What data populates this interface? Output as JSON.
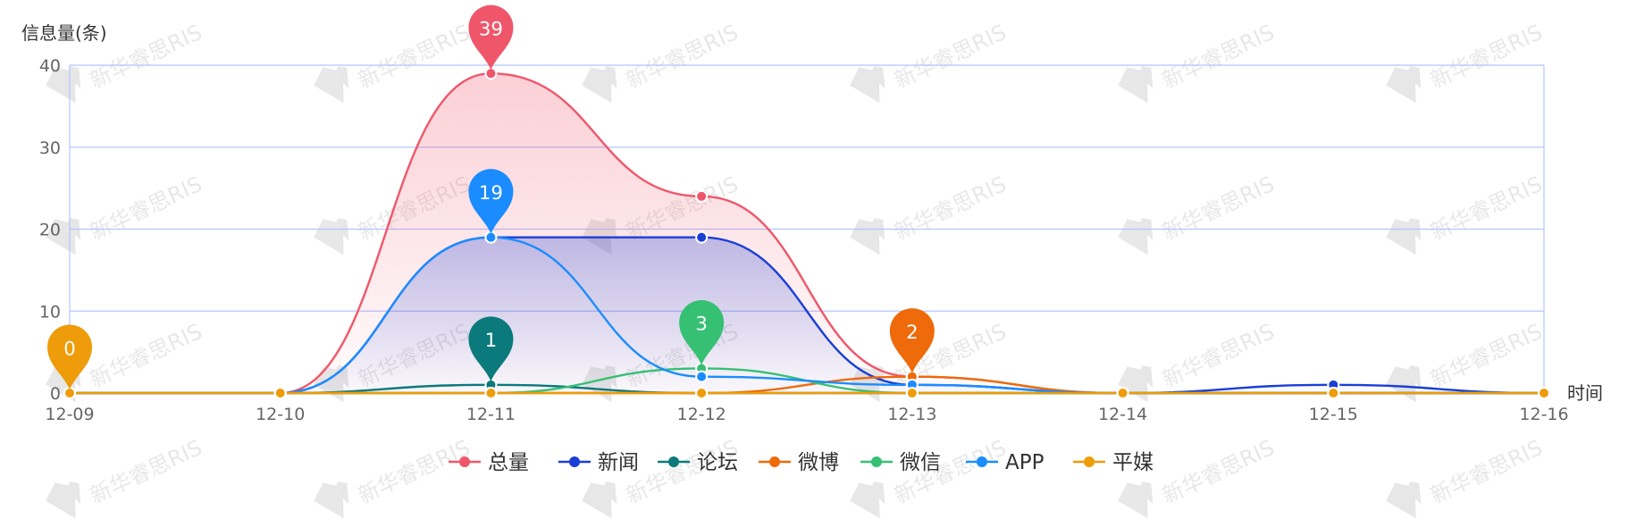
{
  "chart_data": {
    "type": "line",
    "ylabel": "信息量(条)",
    "xlabel": "时间",
    "x": [
      "12-09",
      "12-10",
      "12-11",
      "12-12",
      "12-13",
      "12-14",
      "12-15",
      "12-16"
    ],
    "ylim": [
      0,
      40
    ],
    "yticks": [
      0,
      10,
      20,
      30,
      40
    ],
    "grid": true,
    "legend_position": "bottom",
    "watermark": "新华睿思RIS",
    "series": [
      {
        "name": "总量",
        "color": "#f0566a",
        "values": [
          0,
          0,
          39,
          24,
          2,
          0,
          0,
          0
        ],
        "area": true
      },
      {
        "name": "新闻",
        "color": "#1a3fd6",
        "values": [
          0,
          0,
          19,
          19,
          1,
          0,
          1,
          0
        ],
        "area": true
      },
      {
        "name": "论坛",
        "color": "#0b7a7c",
        "values": [
          0,
          0,
          1,
          0,
          0,
          0,
          0,
          0
        ]
      },
      {
        "name": "微博",
        "color": "#ee6a0a",
        "values": [
          0,
          0,
          0,
          0,
          2,
          0,
          0,
          0
        ]
      },
      {
        "name": "微信",
        "color": "#36c074",
        "values": [
          0,
          0,
          0,
          3,
          0,
          0,
          0,
          0
        ]
      },
      {
        "name": "APP",
        "color": "#1a8cff",
        "values": [
          0,
          0,
          19,
          2,
          1,
          0,
          0,
          0
        ]
      },
      {
        "name": "平媒",
        "color": "#ee9c0a",
        "values": [
          0,
          0,
          0,
          0,
          0,
          0,
          0,
          0
        ]
      }
    ],
    "annotations": [
      {
        "series": "总量",
        "x": "12-11",
        "label": "39"
      },
      {
        "series": "APP",
        "x": "12-11",
        "label": "19"
      },
      {
        "series": "论坛",
        "x": "12-11",
        "label": "1"
      },
      {
        "series": "微信",
        "x": "12-12",
        "label": "3"
      },
      {
        "series": "微博",
        "x": "12-13",
        "label": "2"
      },
      {
        "series": "平媒",
        "x": "12-09",
        "label": "0"
      }
    ]
  }
}
